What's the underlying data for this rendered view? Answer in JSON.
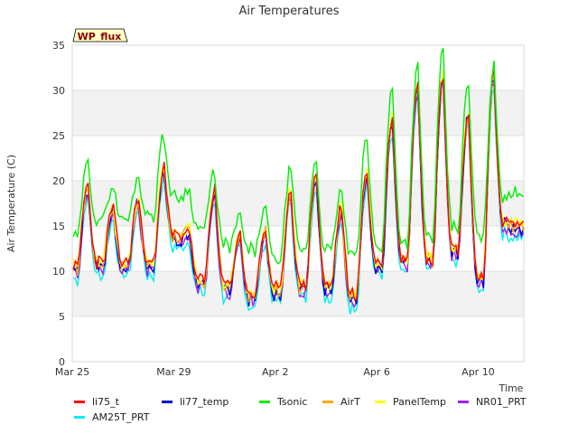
{
  "chart_data": {
    "type": "line",
    "title": "Air Temperatures",
    "xlabel": "Time",
    "ylabel": "Air Temperature (C)",
    "ylim": [
      0,
      35
    ],
    "xlim": [
      "2024-03-25",
      "2024-04-11"
    ],
    "yticks": [
      0,
      5,
      10,
      15,
      20,
      25,
      30,
      35
    ],
    "xticks": [
      {
        "date": "2024-03-25",
        "label": "Mar 25"
      },
      {
        "date": "2024-03-29",
        "label": "Mar 29"
      },
      {
        "date": "2024-04-02",
        "label": "Apr 2"
      },
      {
        "date": "2024-04-06",
        "label": "Apr 6"
      },
      {
        "date": "2024-04-10",
        "label": "Apr 10"
      }
    ],
    "annotation": "WP_flux",
    "grid": "horizontal bands",
    "legend_position": "bottom",
    "series": [
      {
        "name": "li75_t",
        "color": "#ff0000"
      },
      {
        "name": "li77_temp",
        "color": "#0000cc"
      },
      {
        "name": "Tsonic",
        "color": "#00ee00"
      },
      {
        "name": "AirT",
        "color": "#ffa500"
      },
      {
        "name": "PanelTemp",
        "color": "#ffff00"
      },
      {
        "name": "NR01_PRT",
        "color": "#a020f0"
      },
      {
        "name": "AM25T_PRT",
        "color": "#00eeee"
      }
    ],
    "daily_extremes": {
      "dates": [
        "2024-03-25",
        "2024-03-26",
        "2024-03-27",
        "2024-03-28",
        "2024-03-29",
        "2024-03-30",
        "2024-03-31",
        "2024-04-01",
        "2024-04-02",
        "2024-04-03",
        "2024-04-04",
        "2024-04-05",
        "2024-04-06",
        "2024-04-07",
        "2024-04-08",
        "2024-04-09",
        "2024-04-10",
        "2024-04-11"
      ],
      "min": [
        10.0,
        10.5,
        10.5,
        10.5,
        13.5,
        8.5,
        8.0,
        7.0,
        7.5,
        8.0,
        8.0,
        7.0,
        10.5,
        11.0,
        11.0,
        12.0,
        9.0,
        15.0
      ],
      "max": [
        19.5,
        17.0,
        18.0,
        21.5,
        14.5,
        19.0,
        14.0,
        14.5,
        19.0,
        21.0,
        17.0,
        21.0,
        27.0,
        31.0,
        32.0,
        27.5,
        32.0,
        15.0
      ],
      "tsonic_min": [
        13.5,
        15.5,
        15.5,
        16.0,
        18.0,
        14.5,
        12.5,
        12.0,
        11.0,
        12.0,
        12.0,
        11.5,
        12.5,
        13.0,
        13.5,
        14.5,
        13.5,
        18.0
      ],
      "tsonic_max": [
        22.0,
        19.5,
        20.5,
        25.0,
        19.0,
        21.0,
        16.0,
        17.0,
        21.5,
        22.5,
        19.0,
        25.0,
        30.5,
        33.0,
        34.5,
        31.0,
        33.0,
        19.0
      ]
    }
  }
}
